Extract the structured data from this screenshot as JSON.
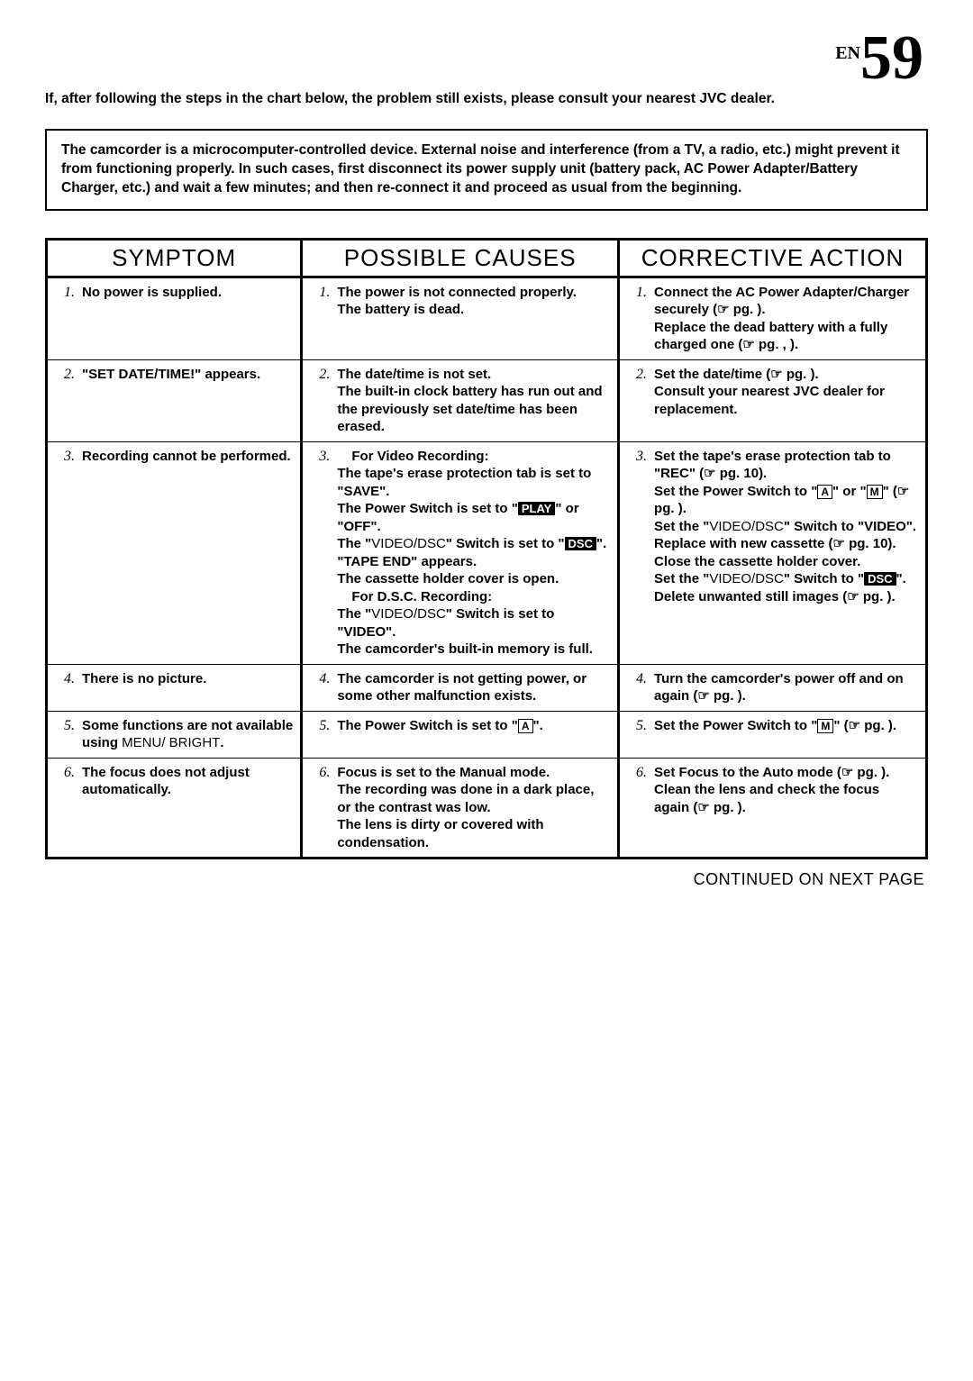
{
  "page_number_prefix": "EN",
  "page_number": "59",
  "intro_text": "If, after following the steps in the chart below, the problem still exists, please consult your nearest JVC dealer.",
  "callout_text": "The camcorder is a microcomputer-controlled device. External noise and interference (from a TV, a radio, etc.) might prevent it from functioning properly. In such cases, first disconnect its power supply unit (battery pack, AC Power Adapter/Battery Charger, etc.) and wait a few minutes; and then re-connect it and proceed as usual from the beginning.",
  "headers": {
    "symptom": "SYMPTOM",
    "cause": "POSSIBLE CAUSES",
    "action": "CORRECTIVE ACTION"
  },
  "footer": "CONTINUED ON NEXT PAGE",
  "rows": [
    {
      "n": "1.",
      "symptom": "No power is supplied.",
      "cause": "The power is not connected properly.\nThe battery is dead.",
      "action": "Connect the AC Power Adapter/Charger securely (☞ pg.  ).\nReplace the dead battery with a fully charged one (☞ pg.  ,  )."
    },
    {
      "n": "2.",
      "symptom_html": "<b>\"SET DATE/TIME!\" appears.</b>",
      "cause": "The date/time is not set.\nThe built-in clock battery has run out and the previously set date/time has been erased.",
      "action": "Set the date/time (☞ pg.  ).\nConsult your nearest JVC dealer for replacement."
    },
    {
      "n": "3.",
      "symptom": "Recording cannot be performed.",
      "cause_html": "<span class='sub'><b>For Video Recording:</b></span><b>The tape's erase protection tab is set to \"SAVE\".<br>The Power Switch is set to \"</b><span class='inv'>PLAY</span><b>\" or \"OFF\".<br>The \"</b><span class='nb'>VIDEO/DSC</span><b>\" Switch is set to \"</b><span class='inv'>DSC</span><b>\".<br>\"TAPE END\" appears.<br>The cassette holder cover is open.</b><br><span class='sub'><b>For D.S.C. Recording:</b></span><b>The \"</b><span class='nb'>VIDEO/DSC</span><b>\" Switch is set to \"VIDEO\".<br>The camcorder's built-in memory is full.</b>",
      "action_html": "<b>Set the tape's erase protection tab to \"REC\" (☞ pg. 10).<br>Set the Power Switch to \"</b><span class='box'>A</span><b>\" or \"</b><span class='box'>M</span><b>\" (☞ pg.  ).<br>Set the \"</b><span class='nb'>VIDEO/DSC</span><b>\" Switch to \"VIDEO\".<br>Replace with new cassette (☞ pg. 10).<br>Close the cassette holder cover.<br>Set the \"</b><span class='nb'>VIDEO/DSC</span><b>\" Switch to \"</b><span class='inv'>DSC</span><b>\".<br>Delete unwanted still images (☞ pg.  ).</b>"
    },
    {
      "n": "4.",
      "symptom": "There is no picture.",
      "cause": "The camcorder is not getting power, or some other malfunction exists.",
      "action": "Turn the camcorder's power off and on again (☞ pg.  )."
    },
    {
      "n": "5.",
      "symptom_html": "<b>Some functions are not available using </b><span class='nb'>MENU/ BRIGHT</span><b>.</b>",
      "cause_html": "<b>The Power Switch is set to \"</b><span class='box'>A</span><b>\".</b>",
      "action_html": "<b>Set the Power Switch to \"</b><span class='box'>M</span><b>\" (☞ pg.  ).</b>"
    },
    {
      "n": "6.",
      "symptom": "The focus does not adjust automatically.",
      "cause": "Focus is set to the Manual mode.\nThe recording was done in a dark place, or the contrast was low.\nThe lens is dirty or covered with condensation.",
      "action": "Set Focus to the Auto mode (☞ pg.  ).\nClean the lens and check the focus again (☞ pg.  )."
    }
  ]
}
